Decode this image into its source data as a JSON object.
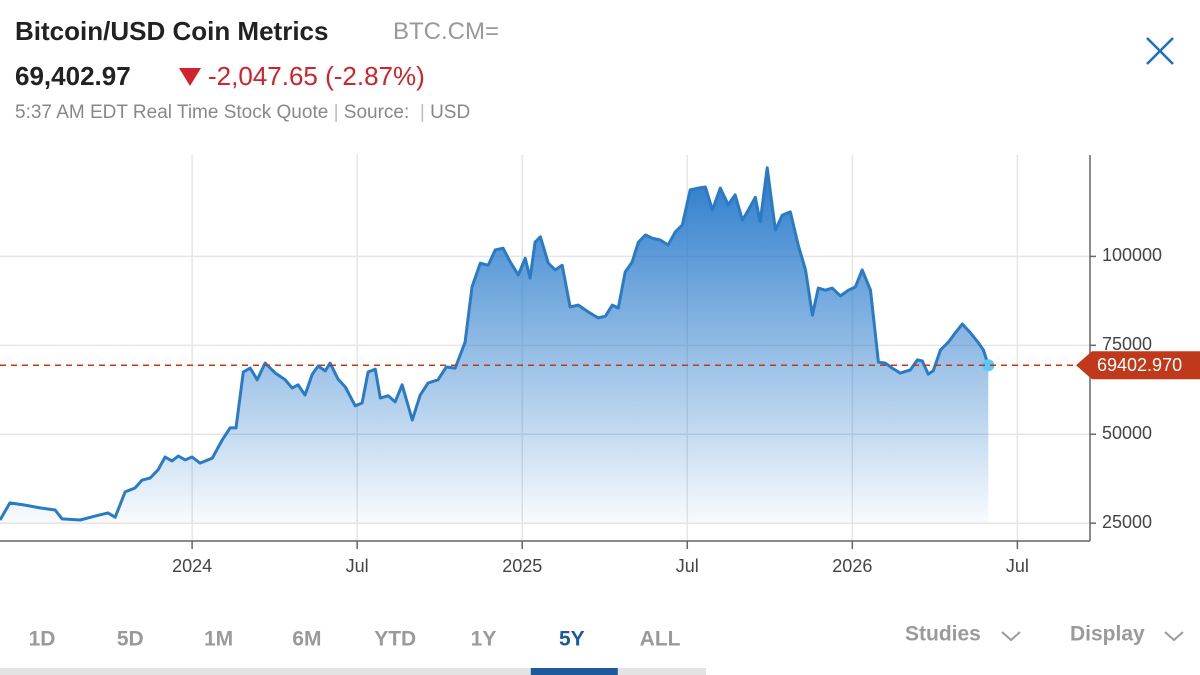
{
  "header": {
    "title": "Bitcoin/USD Coin Metrics",
    "symbol": "BTC.CM=",
    "price": "69,402.97",
    "change": "-2,047.65 (-2.87%)",
    "time": "5:37 AM EDT Real Time Stock Quote",
    "source": "Source:",
    "currency": "USD"
  },
  "controls": {
    "tabs": [
      "1D",
      "5D",
      "1M",
      "6M",
      "YTD",
      "1Y",
      "5Y",
      "ALL"
    ],
    "selected_index": 6,
    "studies": "Studies",
    "display": "Display"
  },
  "chart_data": {
    "type": "line",
    "color": "#2a7bc4",
    "grid": true,
    "x": [
      2023.418,
      2023.448,
      2023.494,
      2023.539,
      2023.585,
      2023.606,
      2023.661,
      2023.706,
      2023.745,
      2023.767,
      2023.797,
      2023.827,
      2023.848,
      2023.873,
      2023.897,
      2023.918,
      2023.939,
      2023.958,
      2023.979,
      2024.0,
      2024.024,
      2024.061,
      2024.091,
      2024.115,
      2024.133,
      2024.155,
      2024.176,
      2024.197,
      2024.221,
      2024.252,
      2024.282,
      2024.303,
      2024.321,
      2024.342,
      2024.364,
      2024.382,
      2024.403,
      2024.418,
      2024.442,
      2024.464,
      2024.494,
      2024.515,
      2024.533,
      2024.555,
      2024.57,
      2024.594,
      2024.615,
      2024.636,
      2024.667,
      2024.691,
      2024.715,
      2024.745,
      2024.77,
      2024.797,
      2024.827,
      2024.848,
      2024.873,
      2024.897,
      2024.918,
      2024.942,
      2024.964,
      2024.988,
      2025.009,
      2025.024,
      2025.039,
      2025.055,
      2025.079,
      2025.1,
      2025.121,
      2025.145,
      2025.17,
      2025.2,
      2025.23,
      2025.252,
      2025.273,
      2025.291,
      2025.312,
      2025.333,
      2025.352,
      2025.373,
      2025.394,
      2025.418,
      2025.442,
      2025.464,
      2025.485,
      2025.509,
      2025.533,
      2025.555,
      2025.576,
      2025.6,
      2025.624,
      2025.645,
      2025.667,
      2025.685,
      2025.706,
      2025.721,
      2025.742,
      2025.767,
      2025.788,
      2025.812,
      2025.836,
      2025.858,
      2025.879,
      2025.897,
      2025.918,
      2025.939,
      2025.964,
      2025.988,
      2026.009,
      2026.03,
      2026.055,
      2026.079,
      2026.1,
      2026.121,
      2026.145,
      2026.176,
      2026.197,
      2026.212,
      2026.23,
      2026.245,
      2026.267,
      2026.291,
      2026.312,
      2026.333,
      2026.358,
      2026.382,
      2026.397,
      2026.412
    ],
    "values": [
      25900,
      30700,
      30100,
      29300,
      28700,
      26200,
      25900,
      27000,
      27900,
      26700,
      33800,
      34900,
      37100,
      37700,
      40000,
      43600,
      42500,
      43900,
      42800,
      43600,
      41900,
      43300,
      48400,
      51800,
      51800,
      67500,
      68600,
      65300,
      70000,
      67200,
      65300,
      63000,
      63900,
      61000,
      66900,
      69200,
      67800,
      70000,
      65500,
      63300,
      58000,
      58800,
      67500,
      68300,
      60200,
      60800,
      59100,
      63900,
      54000,
      61000,
      64400,
      65300,
      68900,
      68600,
      75900,
      91400,
      98100,
      97500,
      101800,
      102300,
      98400,
      94800,
      99500,
      93900,
      104000,
      105500,
      98100,
      96200,
      97500,
      85800,
      86300,
      84400,
      82700,
      83200,
      86300,
      85500,
      95600,
      98400,
      104000,
      106000,
      105100,
      104600,
      103200,
      106900,
      108800,
      118700,
      119200,
      119500,
      113000,
      119200,
      114500,
      117300,
      110200,
      113000,
      116600,
      109700,
      124900,
      107400,
      111600,
      112500,
      103200,
      96200,
      83500,
      91100,
      90500,
      91100,
      88900,
      90500,
      91400,
      96200,
      90500,
      70300,
      70000,
      68600,
      67200,
      68100,
      70900,
      70600,
      66900,
      67800,
      73700,
      75900,
      78500,
      81000,
      78500,
      75700,
      73700,
      69402.97
    ],
    "xlim": [
      2023.418,
      2026.72
    ],
    "ylim": [
      20000,
      128500
    ],
    "xticks": [
      {
        "value": 2024,
        "label": "2024"
      },
      {
        "value": 2024.5,
        "label": "Jul"
      },
      {
        "value": 2025,
        "label": "2025"
      },
      {
        "value": 2025.5,
        "label": "Jul"
      },
      {
        "value": 2026,
        "label": "2026"
      },
      {
        "value": 2026.5,
        "label": "Jul"
      }
    ],
    "yticks": [
      25000,
      50000,
      75000,
      100000
    ],
    "reference": {
      "value": 69402.97,
      "label": "69402.970",
      "color": "#c0391b"
    }
  }
}
